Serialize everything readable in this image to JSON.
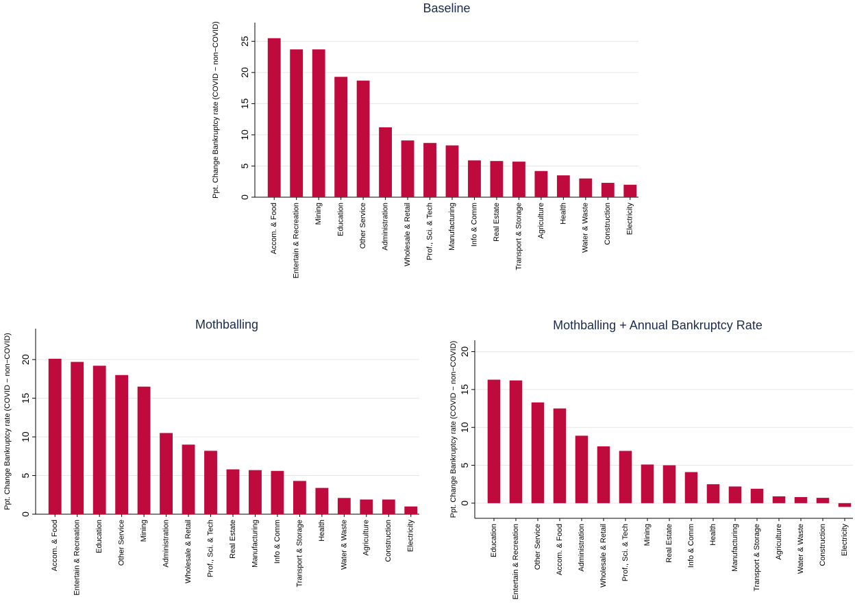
{
  "chart_data": [
    {
      "type": "bar",
      "title": "Baseline",
      "y_label": "Ppt. Change Bankruptcy rate (COVID − non−COVID)",
      "color": "#be0a3c",
      "grid": true,
      "categories": [
        "Accom. & Food",
        "Entertain & Recreation",
        "Mining",
        "Education",
        "Other Service",
        "Administration",
        "Wholesale & Retail",
        "Prof., Sci. & Tech",
        "Manufacturing",
        "Info & Comm",
        "Real Estate",
        "Transport & Storage",
        "Agriculture",
        "Health",
        "Water & Waste",
        "Construction",
        "Electricity"
      ],
      "values": [
        25.5,
        23.7,
        23.7,
        19.3,
        18.7,
        11.2,
        9.1,
        8.7,
        8.3,
        5.9,
        5.8,
        5.7,
        4.2,
        3.5,
        3.0,
        2.3,
        2.0
      ],
      "ylim": [
        0,
        28
      ],
      "yticks": [
        0,
        5,
        10,
        15,
        20,
        25
      ]
    },
    {
      "type": "bar",
      "title": "Mothballing",
      "y_label": "Ppt. Change Bankruptcy rate (COVID − non−COVID)",
      "color": "#be0a3c",
      "grid": true,
      "categories": [
        "Accom. & Food",
        "Entertain & Recreation",
        "Education",
        "Other Service",
        "Mining",
        "Administration",
        "Wholesale & Retail",
        "Prof., Sci. & Tech",
        "Real Estate",
        "Manufacturing",
        "Info & Comm",
        "Transport & Storage",
        "Health",
        "Water & Waste",
        "Agriculture",
        "Construction",
        "Electricity"
      ],
      "values": [
        20.1,
        19.7,
        19.2,
        18.0,
        16.5,
        10.5,
        9.0,
        8.2,
        5.8,
        5.7,
        5.6,
        4.3,
        3.4,
        2.1,
        1.9,
        1.9,
        1.0
      ],
      "ylim": [
        0,
        24
      ],
      "yticks": [
        0,
        5,
        10,
        15,
        20
      ]
    },
    {
      "type": "bar",
      "title": "Mothballing + Annual Bankruptcy Rate",
      "y_label": "Ppt. Change Bankruptcy rate (COVID − non−COVID)",
      "color": "#be0a3c",
      "grid": true,
      "categories": [
        "Education",
        "Entertain & Recreation",
        "Other Service",
        "Accom. & Food",
        "Administration",
        "Wholesale & Retail",
        "Prof., Sci. & Tech",
        "Mining",
        "Real Estate",
        "Info & Comm",
        "Health",
        "Manufacturing",
        "Transport & Storage",
        "Agriculture",
        "Water & Waste",
        "Construction",
        "Electricity"
      ],
      "values": [
        16.3,
        16.2,
        13.3,
        12.5,
        8.9,
        7.5,
        6.9,
        5.1,
        5.0,
        4.1,
        2.5,
        2.2,
        1.9,
        0.9,
        0.8,
        0.7,
        -0.5
      ],
      "ylim": [
        -2,
        21.5
      ],
      "yticks": [
        0,
        5,
        10,
        15,
        20
      ]
    }
  ]
}
